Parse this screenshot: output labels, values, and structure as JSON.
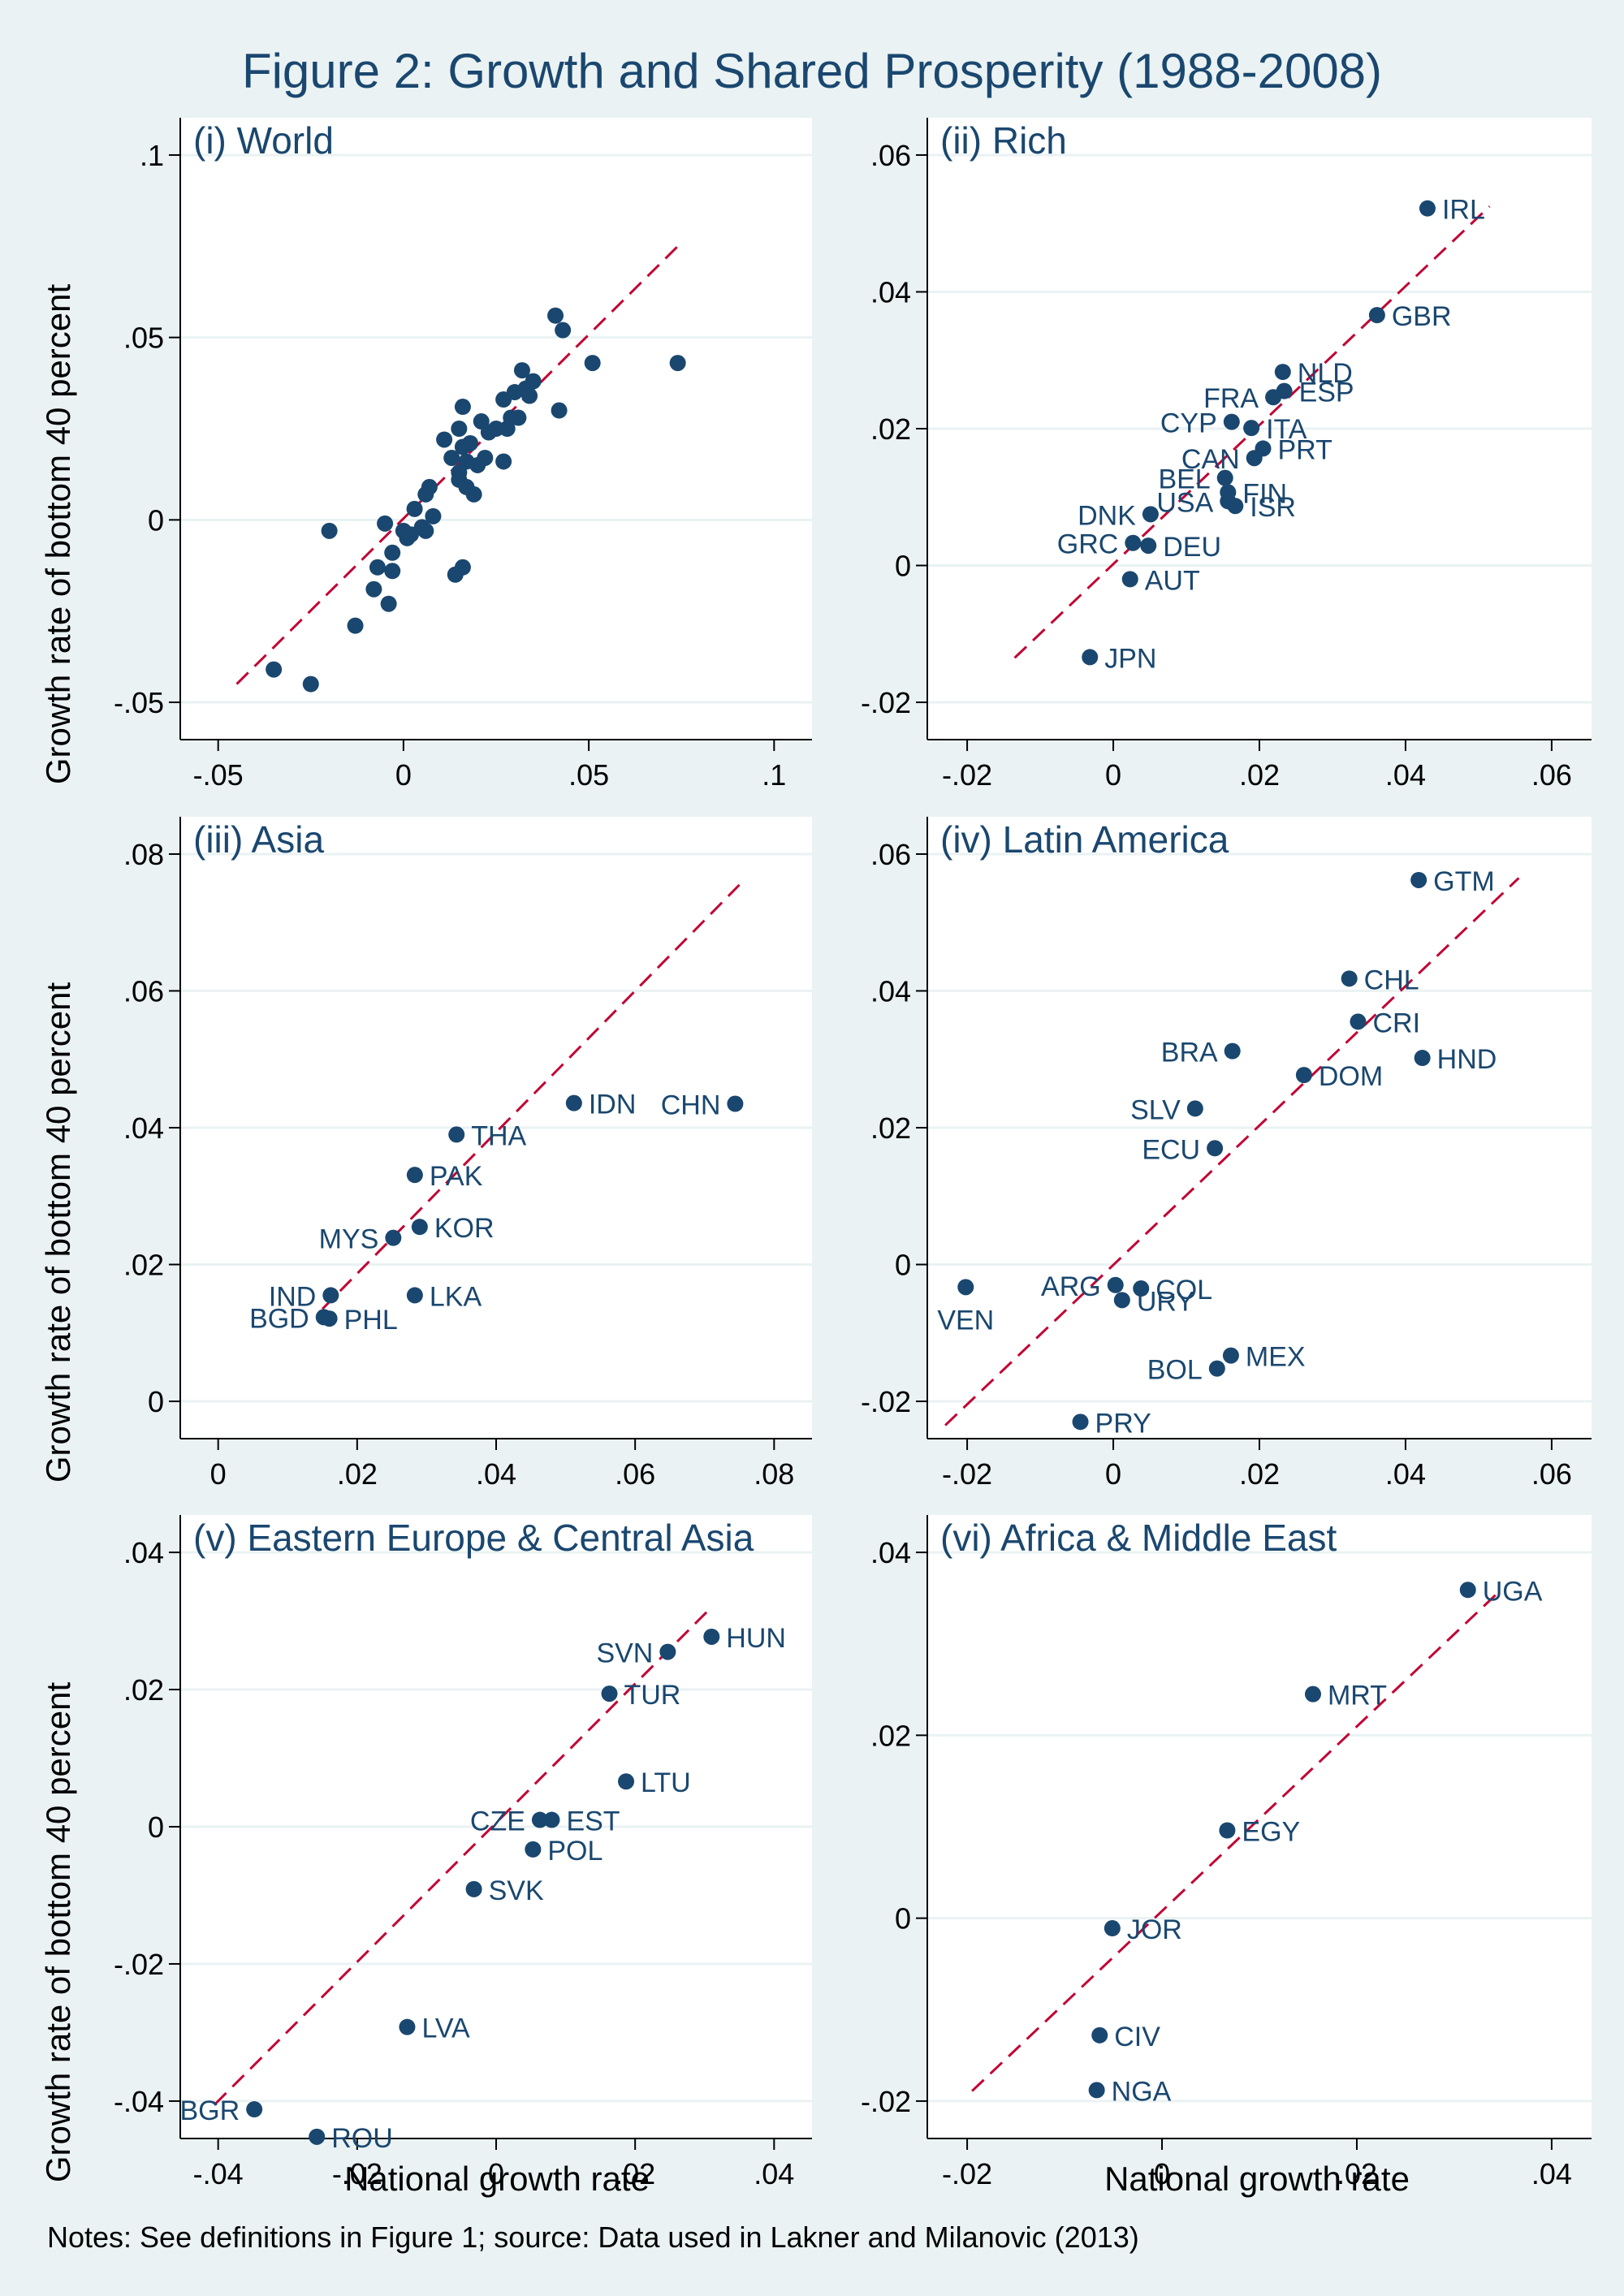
{
  "title": "Figure 2: Growth and Shared Prosperity (1988-2008)",
  "note": "Notes: See definitions in Figure 1; source: Data used in Lakner and Milanovic (2013)",
  "xlabel": "National growth rate",
  "ylabel": "Growth rate of bottom 40 percent",
  "colors": {
    "background": "#eaf2f3",
    "plot_bg": "#ffffff",
    "grid": "#eaf2f3",
    "points": "#1a476f",
    "fit_line": "#c10534",
    "text": "#1a476f"
  },
  "chart_data": [
    {
      "type": "scatter",
      "title": "(i) World",
      "xlim": [
        -0.05,
        0.1
      ],
      "ylim": [
        -0.05,
        0.1
      ],
      "xticks": [
        -0.05,
        0,
        0.05,
        0.1
      ],
      "xtick_labels": [
        "-.05",
        "0",
        ".05",
        ".1"
      ],
      "yticks": [
        -0.05,
        0,
        0.05,
        0.1
      ],
      "ytick_labels": [
        "-.05",
        "0",
        ".05",
        ".1"
      ],
      "fit_line": {
        "x": [
          -0.045,
          0.075
        ],
        "y": [
          -0.045,
          0.076
        ]
      },
      "points": [
        {
          "x": -0.035,
          "y": -0.041
        },
        {
          "x": -0.025,
          "y": -0.045
        },
        {
          "x": -0.02,
          "y": -0.003
        },
        {
          "x": -0.013,
          "y": -0.029
        },
        {
          "x": -0.008,
          "y": -0.019
        },
        {
          "x": -0.007,
          "y": -0.013
        },
        {
          "x": -0.005,
          "y": -0.001
        },
        {
          "x": -0.004,
          "y": -0.023
        },
        {
          "x": -0.003,
          "y": -0.014
        },
        {
          "x": -0.003,
          "y": -0.009
        },
        {
          "x": 0.0,
          "y": -0.003
        },
        {
          "x": 0.001,
          "y": -0.005
        },
        {
          "x": 0.002,
          "y": -0.004
        },
        {
          "x": 0.003,
          "y": 0.003
        },
        {
          "x": 0.005,
          "y": -0.002
        },
        {
          "x": 0.006,
          "y": 0.007
        },
        {
          "x": 0.006,
          "y": -0.003
        },
        {
          "x": 0.007,
          "y": 0.009
        },
        {
          "x": 0.008,
          "y": 0.001
        },
        {
          "x": 0.011,
          "y": 0.022
        },
        {
          "x": 0.013,
          "y": 0.017
        },
        {
          "x": 0.014,
          "y": -0.015
        },
        {
          "x": 0.015,
          "y": 0.025
        },
        {
          "x": 0.015,
          "y": 0.011
        },
        {
          "x": 0.015,
          "y": 0.013
        },
        {
          "x": 0.016,
          "y": 0.031
        },
        {
          "x": 0.016,
          "y": -0.013
        },
        {
          "x": 0.016,
          "y": 0.02
        },
        {
          "x": 0.017,
          "y": 0.016
        },
        {
          "x": 0.017,
          "y": 0.009
        },
        {
          "x": 0.018,
          "y": 0.021
        },
        {
          "x": 0.019,
          "y": 0.007
        },
        {
          "x": 0.02,
          "y": 0.015
        },
        {
          "x": 0.021,
          "y": 0.027
        },
        {
          "x": 0.022,
          "y": 0.017
        },
        {
          "x": 0.023,
          "y": 0.024
        },
        {
          "x": 0.025,
          "y": 0.025
        },
        {
          "x": 0.027,
          "y": 0.033
        },
        {
          "x": 0.027,
          "y": 0.016
        },
        {
          "x": 0.028,
          "y": 0.025
        },
        {
          "x": 0.029,
          "y": 0.028
        },
        {
          "x": 0.03,
          "y": 0.035
        },
        {
          "x": 0.031,
          "y": 0.028
        },
        {
          "x": 0.032,
          "y": 0.041
        },
        {
          "x": 0.033,
          "y": 0.036
        },
        {
          "x": 0.034,
          "y": 0.034
        },
        {
          "x": 0.035,
          "y": 0.038
        },
        {
          "x": 0.041,
          "y": 0.056
        },
        {
          "x": 0.042,
          "y": 0.03
        },
        {
          "x": 0.043,
          "y": 0.052
        },
        {
          "x": 0.051,
          "y": 0.043
        },
        {
          "x": 0.074,
          "y": 0.043
        }
      ]
    },
    {
      "type": "scatter",
      "title": "(ii) Rich",
      "xlim": [
        -0.02,
        0.06
      ],
      "ylim": [
        -0.02,
        0.06
      ],
      "xticks": [
        -0.02,
        0,
        0.02,
        0.04,
        0.06
      ],
      "xtick_labels": [
        "-.02",
        "0",
        ".02",
        ".04",
        ".06"
      ],
      "yticks": [
        -0.02,
        0,
        0.02,
        0.04,
        0.06
      ],
      "ytick_labels": [
        "-.02",
        "0",
        ".02",
        ".04",
        ".06"
      ],
      "fit_line": {
        "x": [
          -0.0135,
          0.0515
        ],
        "y": [
          -0.0135,
          0.0525
        ]
      },
      "points": [
        {
          "x": 0.043,
          "y": 0.0522,
          "label": "IRL",
          "pos": "r"
        },
        {
          "x": 0.0361,
          "y": 0.0366,
          "label": "GBR",
          "pos": "r"
        },
        {
          "x": 0.0232,
          "y": 0.0283,
          "label": "NLD",
          "pos": "r"
        },
        {
          "x": 0.0234,
          "y": 0.0255,
          "label": "ESP",
          "pos": "r"
        },
        {
          "x": 0.0219,
          "y": 0.0246,
          "label": "FRA",
          "pos": "l"
        },
        {
          "x": 0.0162,
          "y": 0.021,
          "label": "CYP",
          "pos": "l"
        },
        {
          "x": 0.0189,
          "y": 0.0201,
          "label": "ITA",
          "pos": "r"
        },
        {
          "x": 0.0205,
          "y": 0.0171,
          "label": "PRT",
          "pos": "r"
        },
        {
          "x": 0.0193,
          "y": 0.0157,
          "label": "CAN",
          "pos": "l"
        },
        {
          "x": 0.0153,
          "y": 0.0128,
          "label": "BEL",
          "pos": "l"
        },
        {
          "x": 0.0157,
          "y": 0.0107,
          "label": "FIN",
          "pos": "r"
        },
        {
          "x": 0.0157,
          "y": 0.0094,
          "label": "USA",
          "pos": "l"
        },
        {
          "x": 0.0167,
          "y": 0.0087,
          "label": "ISR",
          "pos": "r"
        },
        {
          "x": 0.0051,
          "y": 0.0075,
          "label": "DNK",
          "pos": "l"
        },
        {
          "x": 0.0027,
          "y": 0.0033,
          "label": "GRC",
          "pos": "l"
        },
        {
          "x": 0.0048,
          "y": 0.0029,
          "label": "DEU",
          "pos": "r"
        },
        {
          "x": 0.0023,
          "y": -0.002,
          "label": "AUT",
          "pos": "r"
        },
        {
          "x": -0.0032,
          "y": -0.0134,
          "label": "JPN",
          "pos": "r"
        }
      ]
    },
    {
      "type": "scatter",
      "title": "(iii) Asia",
      "xlim": [
        0,
        0.08
      ],
      "ylim": [
        0,
        0.08
      ],
      "xticks": [
        0,
        0.02,
        0.04,
        0.06,
        0.08
      ],
      "xtick_labels": [
        "0",
        ".02",
        ".04",
        ".06",
        ".08"
      ],
      "yticks": [
        0,
        0.02,
        0.04,
        0.06,
        0.08
      ],
      "ytick_labels": [
        "0",
        ".02",
        ".04",
        ".06",
        ".08"
      ],
      "fit_line": {
        "x": [
          0.015,
          0.075
        ],
        "y": [
          0.0135,
          0.0755
        ]
      },
      "points": [
        {
          "x": 0.0744,
          "y": 0.0435,
          "label": "CHN",
          "pos": "l"
        },
        {
          "x": 0.0512,
          "y": 0.0436,
          "label": "IDN",
          "pos": "r"
        },
        {
          "x": 0.0343,
          "y": 0.039,
          "label": "THA",
          "pos": "r"
        },
        {
          "x": 0.0283,
          "y": 0.0331,
          "label": "PAK",
          "pos": "r"
        },
        {
          "x": 0.029,
          "y": 0.0255,
          "label": "KOR",
          "pos": "r"
        },
        {
          "x": 0.0252,
          "y": 0.0239,
          "label": "MYS",
          "pos": "l"
        },
        {
          "x": 0.0283,
          "y": 0.0155,
          "label": "LKA",
          "pos": "r"
        },
        {
          "x": 0.0162,
          "y": 0.0155,
          "label": "IND",
          "pos": "l"
        },
        {
          "x": 0.0152,
          "y": 0.0123,
          "label": "BGD",
          "pos": "l"
        },
        {
          "x": 0.016,
          "y": 0.0121,
          "label": "PHL",
          "pos": "r"
        }
      ]
    },
    {
      "type": "scatter",
      "title": "(iv) Latin America",
      "xlim": [
        -0.02,
        0.06
      ],
      "ylim": [
        -0.02,
        0.06
      ],
      "xticks": [
        -0.02,
        0,
        0.02,
        0.04,
        0.06
      ],
      "xtick_labels": [
        "-.02",
        "0",
        ".02",
        ".04",
        ".06"
      ],
      "yticks": [
        -0.02,
        0,
        0.02,
        0.04,
        0.06
      ],
      "ytick_labels": [
        "-.02",
        "0",
        ".02",
        ".04",
        ".06"
      ],
      "fit_line": {
        "x": [
          -0.023,
          0.0555
        ],
        "y": [
          -0.0235,
          0.0565
        ]
      },
      "points": [
        {
          "x": 0.0418,
          "y": 0.0562,
          "label": "GTM",
          "pos": "r"
        },
        {
          "x": 0.0323,
          "y": 0.0418,
          "label": "CHL",
          "pos": "r"
        },
        {
          "x": 0.0335,
          "y": 0.0355,
          "label": "CRI",
          "pos": "r"
        },
        {
          "x": 0.0163,
          "y": 0.0312,
          "label": "BRA",
          "pos": "l"
        },
        {
          "x": 0.0423,
          "y": 0.0302,
          "label": "HND",
          "pos": "r"
        },
        {
          "x": 0.0261,
          "y": 0.0277,
          "label": "DOM",
          "pos": "r"
        },
        {
          "x": 0.0112,
          "y": 0.0228,
          "label": "SLV",
          "pos": "l"
        },
        {
          "x": 0.0139,
          "y": 0.017,
          "label": "ECU",
          "pos": "l"
        },
        {
          "x": -0.0202,
          "y": -0.0033,
          "label": "VEN",
          "pos": "b"
        },
        {
          "x": 0.0003,
          "y": -0.003,
          "label": "ARG",
          "pos": "l"
        },
        {
          "x": 0.0038,
          "y": -0.0035,
          "label": "COL",
          "pos": "r"
        },
        {
          "x": 0.0012,
          "y": -0.0052,
          "label": "URY",
          "pos": "r"
        },
        {
          "x": 0.0161,
          "y": -0.0133,
          "label": "MEX",
          "pos": "r"
        },
        {
          "x": 0.0142,
          "y": -0.0152,
          "label": "BOL",
          "pos": "l"
        },
        {
          "x": -0.0045,
          "y": -0.023,
          "label": "PRY",
          "pos": "r"
        }
      ]
    },
    {
      "type": "scatter",
      "title": "(v) Eastern Europe & Central Asia",
      "xlim": [
        -0.04,
        0.04
      ],
      "ylim": [
        -0.04,
        0.04
      ],
      "xticks": [
        -0.04,
        -0.02,
        0,
        0.02,
        0.04
      ],
      "xtick_labels": [
        "-.04",
        "-.02",
        "0",
        ".02",
        ".04"
      ],
      "yticks": [
        -0.04,
        -0.02,
        0,
        0.02,
        0.04
      ],
      "ytick_labels": [
        "-.04",
        "-.02",
        "0",
        ".02",
        ".04"
      ],
      "fit_line": {
        "x": [
          -0.0405,
          0.0305
        ],
        "y": [
          -0.0405,
          0.0315
        ]
      },
      "points": [
        {
          "x": 0.031,
          "y": 0.0277,
          "label": "HUN",
          "pos": "r"
        },
        {
          "x": 0.0247,
          "y": 0.0255,
          "label": "SVN",
          "pos": "l"
        },
        {
          "x": 0.0163,
          "y": 0.0194,
          "label": "TUR",
          "pos": "r"
        },
        {
          "x": 0.0187,
          "y": 0.0066,
          "label": "LTU",
          "pos": "r"
        },
        {
          "x": 0.0063,
          "y": 0.001,
          "label": "CZE",
          "pos": "l"
        },
        {
          "x": 0.008,
          "y": 0.001,
          "label": "EST",
          "pos": "r"
        },
        {
          "x": 0.0053,
          "y": -0.0033,
          "label": "POL",
          "pos": "r"
        },
        {
          "x": -0.0032,
          "y": -0.0091,
          "label": "SVK",
          "pos": "r"
        },
        {
          "x": -0.0128,
          "y": -0.0292,
          "label": "LVA",
          "pos": "r"
        },
        {
          "x": -0.0348,
          "y": -0.0412,
          "label": "BGR",
          "pos": "l"
        },
        {
          "x": -0.0258,
          "y": -0.0452,
          "label": "ROU",
          "pos": "r"
        }
      ]
    },
    {
      "type": "scatter",
      "title": "(vi) Africa & Middle East",
      "xlim": [
        -0.02,
        0.04
      ],
      "ylim": [
        -0.02,
        0.04
      ],
      "xticks": [
        -0.02,
        0,
        0.02,
        0.04
      ],
      "xtick_labels": [
        "-.02",
        "0",
        ".02",
        ".04"
      ],
      "yticks": [
        -0.02,
        0,
        0.02,
        0.04
      ],
      "ytick_labels": [
        "-.02",
        "0",
        ".02",
        ".04"
      ],
      "fit_line": {
        "x": [
          -0.0195,
          0.0345
        ],
        "y": [
          -0.0189,
          0.0356
        ]
      },
      "points": [
        {
          "x": 0.0314,
          "y": 0.0359,
          "label": "UGA",
          "pos": "r"
        },
        {
          "x": 0.0155,
          "y": 0.0245,
          "label": "MRT",
          "pos": "r"
        },
        {
          "x": 0.0067,
          "y": 0.0096,
          "label": "EGY",
          "pos": "r"
        },
        {
          "x": -0.0051,
          "y": -0.0011,
          "label": "JOR",
          "pos": "r"
        },
        {
          "x": -0.0064,
          "y": -0.0128,
          "label": "CIV",
          "pos": "r"
        },
        {
          "x": -0.0067,
          "y": -0.0188,
          "label": "NGA",
          "pos": "r"
        }
      ]
    }
  ]
}
